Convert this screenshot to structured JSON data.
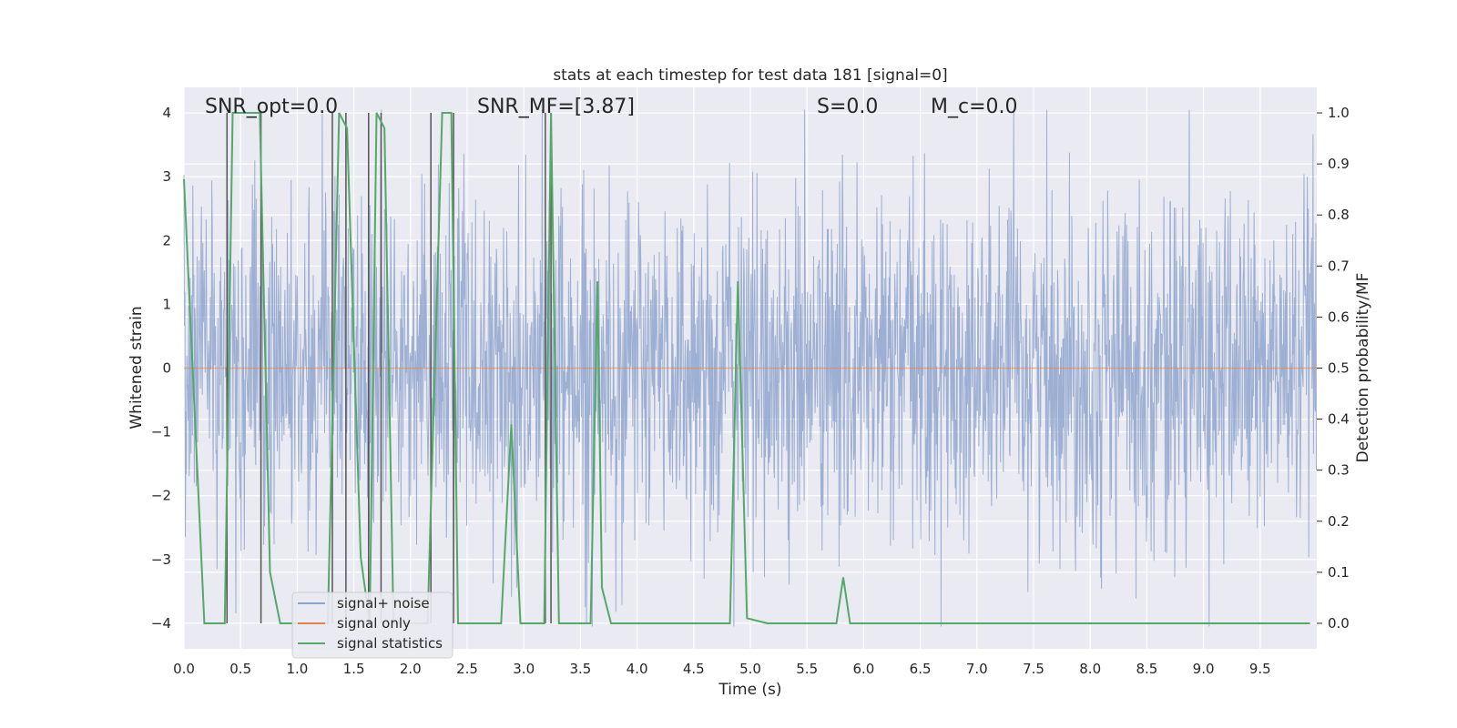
{
  "chart_data": {
    "type": "line",
    "title": "stats at each timestep for test data 181 [signal=0]",
    "xlabel": "Time (s)",
    "ylabel_left": "Whitened strain",
    "ylabel_right": "Detection probability/MF",
    "xlim": [
      0.0,
      10.0
    ],
    "ylim_left": [
      -4.4,
      4.4
    ],
    "ylim_right": [
      -0.05,
      1.05
    ],
    "x_ticks": [
      0.0,
      0.5,
      1.0,
      1.5,
      2.0,
      2.5,
      3.0,
      3.5,
      4.0,
      4.5,
      5.0,
      5.5,
      6.0,
      6.5,
      7.0,
      7.5,
      8.0,
      8.5,
      9.0,
      9.5
    ],
    "x_tick_labels": [
      "0.0",
      "0.5",
      "1.0",
      "1.5",
      "2.0",
      "2.5",
      "3.0",
      "3.5",
      "4.0",
      "4.5",
      "5.0",
      "5.5",
      "6.0",
      "6.5",
      "7.0",
      "7.5",
      "8.0",
      "8.5",
      "9.0",
      "9.5"
    ],
    "y_ticks_left": [
      -4,
      -3,
      -2,
      -1,
      0,
      1,
      2,
      3,
      4
    ],
    "y_tick_labels_left": [
      "−4",
      "−3",
      "−2",
      "−1",
      "0",
      "1",
      "2",
      "3",
      "4"
    ],
    "y_ticks_right": [
      0.0,
      0.1,
      0.2,
      0.3,
      0.4,
      0.5,
      0.6,
      0.7,
      0.8,
      0.9,
      1.0
    ],
    "y_tick_labels_right": [
      "0.0",
      "0.1",
      "0.2",
      "0.3",
      "0.4",
      "0.5",
      "0.6",
      "0.7",
      "0.8",
      "0.9",
      "1.0"
    ],
    "grid": true,
    "legend_position": "lower-left",
    "annotations": [
      {
        "text": "SNR_opt=0.0"
      },
      {
        "text": "SNR_MF=[3.87]"
      },
      {
        "text": "S=0.0"
      },
      {
        "text": "M_c=0.0"
      }
    ],
    "series": [
      {
        "name": "signal+ noise",
        "axis": "left",
        "color": "#8fa4cc",
        "style": "dense noise trace, approx. normal, sigma ~1, range about -4 to 4",
        "sample_rate_hz": 2048,
        "noise_sigma": 1.0
      },
      {
        "name": "signal only",
        "axis": "left",
        "color": "#dd8452",
        "x": [
          0.0,
          10.0
        ],
        "y": [
          0.0,
          0.0
        ]
      },
      {
        "name": "signal statistics",
        "axis": "right",
        "color": "#55a868",
        "x": [
          0.0,
          0.18,
          0.36,
          0.43,
          0.67,
          0.76,
          0.85,
          1.27,
          1.37,
          1.44,
          1.56,
          1.64,
          1.7,
          1.77,
          1.85,
          2.15,
          2.28,
          2.36,
          2.42,
          2.8,
          2.89,
          2.97,
          3.18,
          3.24,
          3.31,
          3.59,
          3.65,
          3.69,
          3.77,
          4.82,
          4.89,
          4.97,
          5.15,
          5.76,
          5.82,
          5.88,
          9.94
        ],
        "y": [
          0.87,
          0.0,
          0.0,
          1.0,
          1.0,
          0.1,
          0.0,
          0.0,
          1.0,
          0.97,
          0.13,
          0.0,
          1.0,
          0.97,
          0.0,
          0.0,
          1.0,
          1.0,
          0.0,
          0.0,
          0.39,
          0.0,
          0.0,
          1.0,
          0.0,
          0.0,
          0.67,
          0.07,
          0.0,
          0.0,
          0.67,
          0.01,
          0.0,
          0.0,
          0.09,
          0.0,
          0.0
        ]
      }
    ],
    "threshold_marks_x": [
      0.38,
      0.68,
      1.31,
      1.43,
      1.63,
      1.74,
      2.18,
      2.38,
      3.19,
      3.24
    ]
  }
}
